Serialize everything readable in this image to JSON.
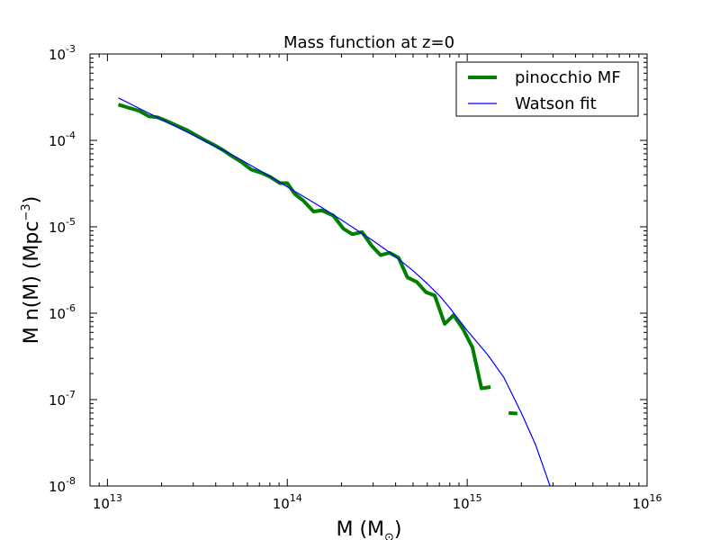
{
  "chart_data": {
    "type": "line",
    "title": "Mass function at z=0",
    "xlabel": "M (M",
    "xlabel_sub": "⊙",
    "xlabel_end": ")",
    "ylabel": "M n(M) (Mpc",
    "ylabel_sup": "−3",
    "ylabel_end": ")",
    "xscale": "log",
    "yscale": "log",
    "xlim": [
      8000000000000.0,
      1e+16
    ],
    "ylim": [
      1e-08,
      0.001
    ],
    "grid": false,
    "legend_position": "top-right",
    "x_ticks": [
      {
        "base": "10",
        "exp": "13",
        "value": 10000000000000.0
      },
      {
        "base": "10",
        "exp": "14",
        "value": 100000000000000.0
      },
      {
        "base": "10",
        "exp": "15",
        "value": 1000000000000000.0
      },
      {
        "base": "10",
        "exp": "16",
        "value": 1e+16
      }
    ],
    "y_ticks": [
      {
        "base": "10",
        "exp": "-8",
        "value": 1e-08
      },
      {
        "base": "10",
        "exp": "-7",
        "value": 1e-07
      },
      {
        "base": "10",
        "exp": "-6",
        "value": 1e-06
      },
      {
        "base": "10",
        "exp": "-5",
        "value": 1e-05
      },
      {
        "base": "10",
        "exp": "-4",
        "value": 0.0001
      },
      {
        "base": "10",
        "exp": "-3",
        "value": 0.001
      }
    ],
    "series": [
      {
        "name": "pinocchio MF",
        "color": "#008000",
        "style": "thick",
        "segments": [
          [
            [
              11500000000000.0,
              0.00026
            ],
            [
              13000000000000.0,
              0.00024
            ],
            [
              15000000000000.0,
              0.00022
            ],
            [
              17000000000000.0,
              0.00019
            ],
            [
              19000000000000.0,
              0.000185
            ],
            [
              21000000000000.0,
              0.00017
            ],
            [
              24000000000000.0,
              0.00015
            ],
            [
              28000000000000.0,
              0.00013
            ],
            [
              31000000000000.0,
              0.000115
            ],
            [
              35000000000000.0,
              0.0001
            ],
            [
              39000000000000.0,
              8.9e-05
            ],
            [
              44000000000000.0,
              7.7e-05
            ],
            [
              48000000000000.0,
              6.8e-05
            ],
            [
              55000000000000.0,
              5.7e-05
            ],
            [
              63000000000000.0,
              4.6e-05
            ],
            [
              72000000000000.0,
              4.2e-05
            ],
            [
              80000000000000.0,
              3.8e-05
            ],
            [
              91000000000000.0,
              3.2e-05
            ],
            [
              100000000000000.0,
              3.2e-05
            ],
            [
              110000000000000.0,
              2.4e-05
            ],
            [
              123000000000000.0,
              2e-05
            ],
            [
              140000000000000.0,
              1.5e-05
            ],
            [
              155000000000000.0,
              1.55e-05
            ],
            [
              180000000000000.0,
              1.35e-05
            ],
            [
              205000000000000.0,
              9.5e-06
            ],
            [
              230000000000000.0,
              8.2e-06
            ],
            [
              260000000000000.0,
              8.7e-06
            ],
            [
              295000000000000.0,
              6e-06
            ],
            [
              330000000000000.0,
              4.7e-06
            ],
            [
              370000000000000.0,
              5e-06
            ],
            [
              415000000000000.0,
              4.4e-06
            ],
            [
              465000000000000.0,
              2.6e-06
            ],
            [
              525000000000000.0,
              2.3e-06
            ],
            [
              590000000000000.0,
              1.75e-06
            ],
            [
              660000000000000.0,
              1.6e-06
            ],
            [
              750000000000000.0,
              7.5e-07
            ],
            [
              840000000000000.0,
              9.5e-07
            ],
            [
              950000000000000.0,
              6.5e-07
            ],
            [
              1070000000000000.0,
              4e-07
            ],
            [
              1200000000000000.0,
              1.35e-07
            ],
            [
              1350000000000000.0,
              1.4e-07
            ]
          ],
          [
            [
              1700000000000000.0,
              7e-08
            ],
            [
              1900000000000000.0,
              6.9e-08
            ]
          ]
        ]
      },
      {
        "name": "Watson fit",
        "color": "#0000ff",
        "style": "thin",
        "segments": [
          [
            [
              11500000000000.0,
              0.00031
            ],
            [
              15000000000000.0,
              0.000235
            ],
            [
              20000000000000.0,
              0.000175
            ],
            [
              30000000000000.0,
              0.000115
            ],
            [
              40000000000000.0,
              8.5e-05
            ],
            [
              50000000000000.0,
              6.7e-05
            ],
            [
              70000000000000.0,
              4.5e-05
            ],
            [
              100000000000000.0,
              2.9e-05
            ],
            [
              150000000000000.0,
              1.75e-05
            ],
            [
              200000000000000.0,
              1.2e-05
            ],
            [
              300000000000000.0,
              6.9e-06
            ],
            [
              400000000000000.0,
              4.5e-06
            ],
            [
              500000000000000.0,
              3.1e-06
            ],
            [
              600000000000000.0,
              2.2e-06
            ],
            [
              700000000000000.0,
              1.6e-06
            ],
            [
              800000000000000.0,
              1.15e-06
            ],
            [
              1000000000000000.0,
              6.3e-07
            ],
            [
              1300000000000000.0,
              3.3e-07
            ],
            [
              1600000000000000.0,
              1.8e-07
            ],
            [
              2000000000000000.0,
              7e-08
            ],
            [
              2400000000000000.0,
              3e-08
            ],
            [
              2800000000000000.0,
              1.2e-08
            ],
            [
              3000000000000000.0,
              8e-09
            ]
          ]
        ]
      }
    ]
  }
}
